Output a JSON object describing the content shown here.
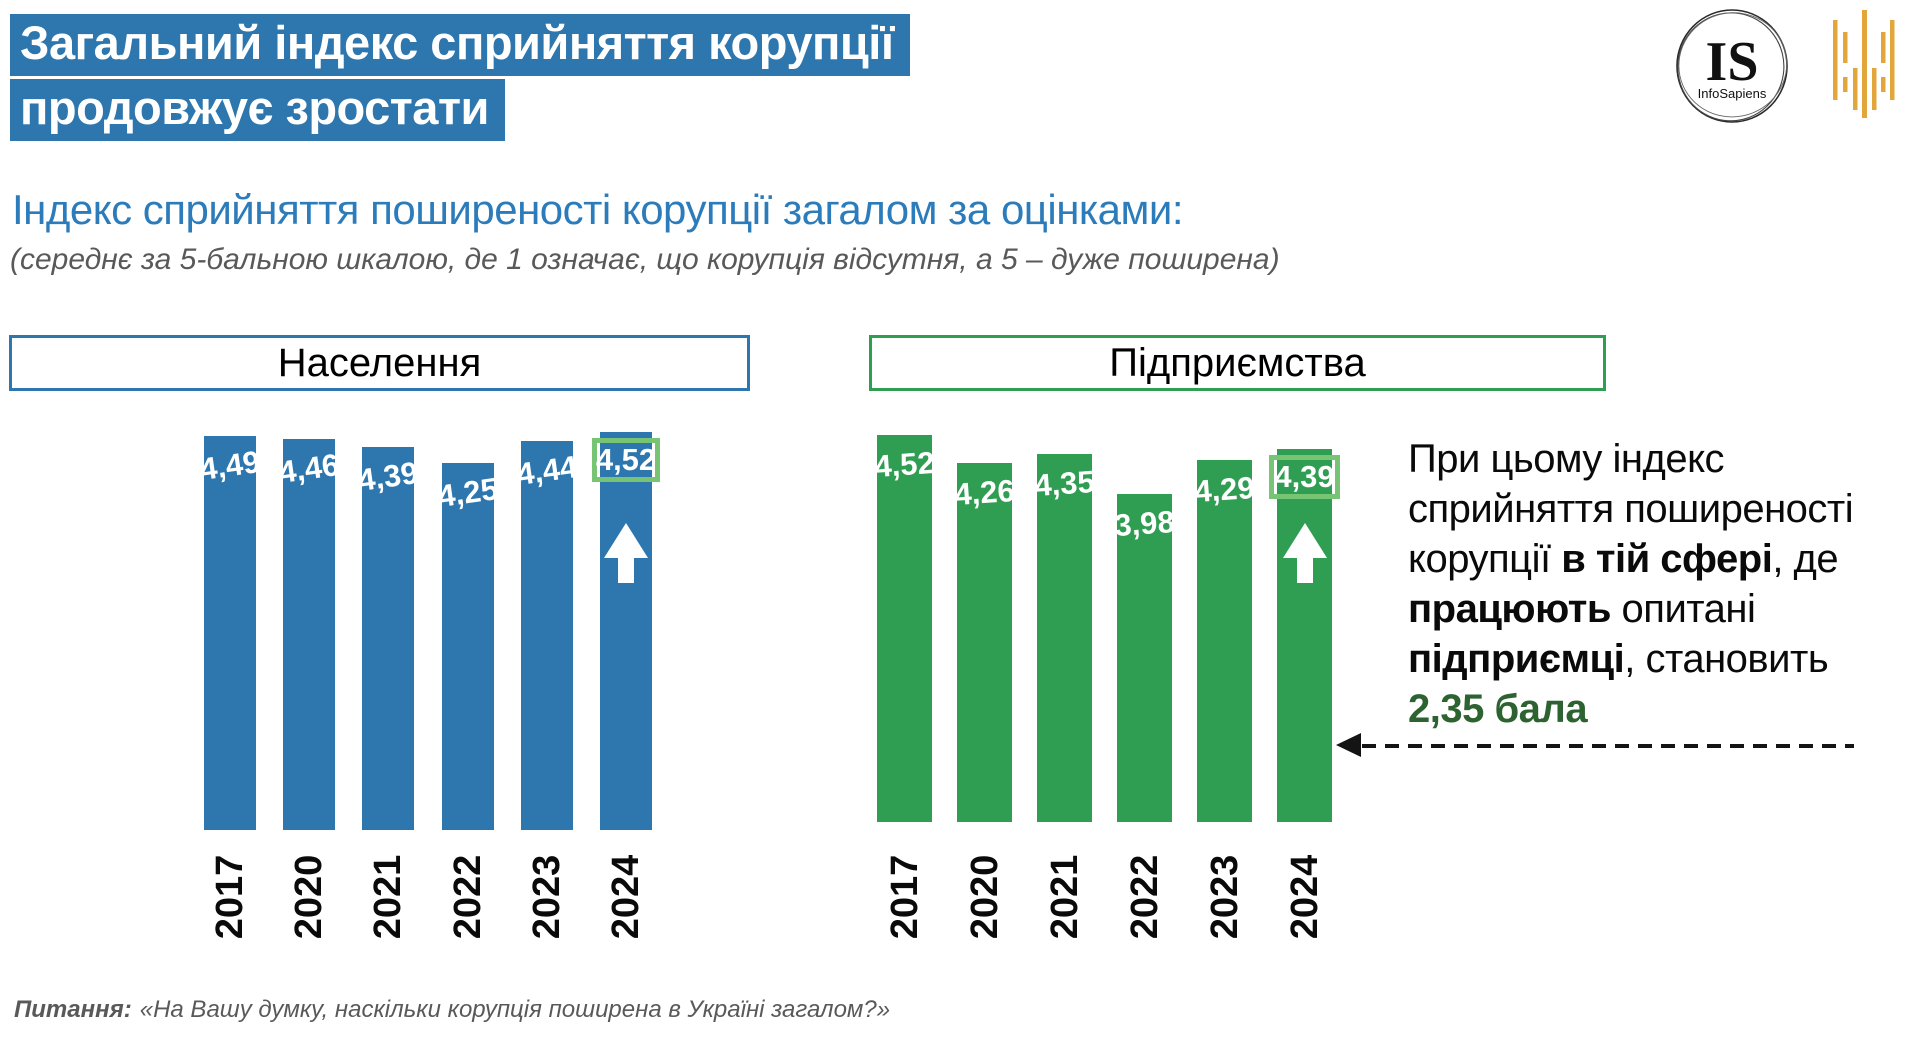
{
  "slide": {
    "title_lines": [
      "Загальний індекс сприйняття корупції",
      "продовжує зростати"
    ],
    "subtitle": "Індекс сприйняття поширеності корупції загалом за оцінками:",
    "subtitle_note": "(середнє за 5-бальною шкалою, де 1 означає, що корупція відсутня, а 5 – дуже поширена)",
    "question": {
      "label": "Питання:",
      "text": "«На Вашу думку, наскільки корупція поширена в Україні загалом?»"
    },
    "logo": {
      "initials": "IS",
      "name": "InfoSapiens"
    }
  },
  "colors": {
    "bar_blue": "#2E76AE",
    "bar_green": "#2F9E52",
    "title_bg": "#2E76AE",
    "subtitle_text": "#2C7CBB",
    "highlight_box_border": "#77C474",
    "accent_dark_green": "#2D6231",
    "muted_text": "#595959",
    "logo_gold": "#E2A63B"
  },
  "chart_data": [
    {
      "type": "bar",
      "title": "Населення",
      "categories": [
        "2017",
        "2020",
        "2021",
        "2022",
        "2023",
        "2024"
      ],
      "values": [
        4.49,
        4.46,
        4.39,
        4.25,
        4.44,
        4.52
      ],
      "labels": [
        "4,49",
        "4,46",
        "4,39",
        "4,25",
        "4,44",
        "4,52"
      ],
      "highlight_index": 5,
      "highlight_marker": "up-arrow",
      "bar_color": "#2E76AE",
      "ylim": [
        1,
        5
      ],
      "grid": false,
      "legend": "none",
      "value_labels_position": "inside-top",
      "category_labels_rotation": 90
    },
    {
      "type": "bar",
      "title": "Підприємства",
      "categories": [
        "2017",
        "2020",
        "2021",
        "2022",
        "2023",
        "2024"
      ],
      "values": [
        4.52,
        4.26,
        4.35,
        3.98,
        4.29,
        4.39
      ],
      "labels": [
        "4,52",
        "4,26",
        "4,35",
        "3,98",
        "4,29",
        "4,39"
      ],
      "highlight_index": 5,
      "highlight_marker": "up-arrow",
      "bar_color": "#2F9E52",
      "ylim": [
        1,
        5
      ],
      "grid": false,
      "legend": "none",
      "value_labels_position": "inside-top",
      "category_labels_rotation": 90
    }
  ],
  "annotation": {
    "segments": [
      {
        "text": "При цьому індекс\nсприйняття поширеності\nкорупції ",
        "bold": false
      },
      {
        "text": "в тій сфері",
        "bold": true
      },
      {
        "text": ", де\n",
        "bold": false
      },
      {
        "text": "працюють",
        "bold": true
      },
      {
        "text": " опитані\n",
        "bold": false
      },
      {
        "text": "підприємці",
        "bold": true
      },
      {
        "text": ", становить\n",
        "bold": false
      },
      {
        "text": "2,35 бала",
        "bold": true,
        "color": "#2D6231"
      }
    ]
  }
}
